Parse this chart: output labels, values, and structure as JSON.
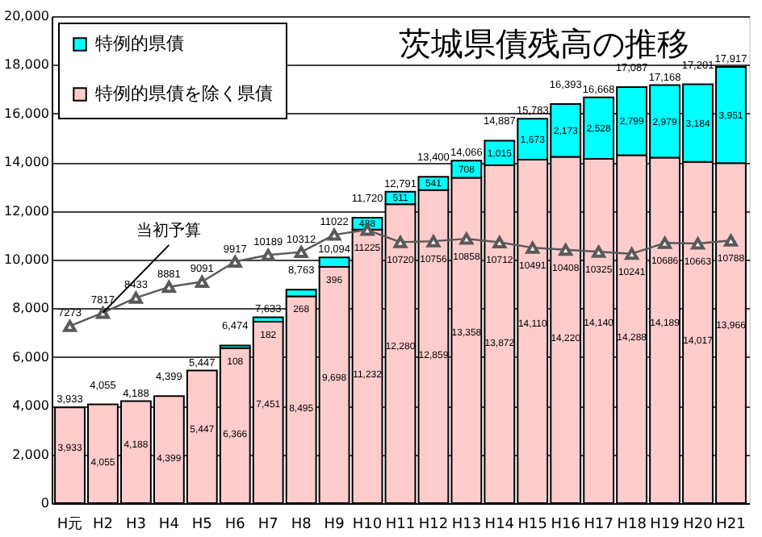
{
  "chart_data": {
    "type": "bar",
    "stacked": true,
    "title": "茨城県債残高の推移",
    "categories": [
      "H元",
      "H2",
      "H3",
      "H4",
      "H5",
      "H6",
      "H7",
      "H8",
      "H9",
      "H10",
      "H11",
      "H12",
      "H13",
      "H14",
      "H15",
      "H16",
      "H17",
      "H18",
      "H19",
      "H20",
      "H21"
    ],
    "series": [
      {
        "name": "特例的県債を除く県債",
        "color": "#ffcccc",
        "values": [
          3933,
          4055,
          4188,
          4399,
          5447,
          6366,
          7451,
          8495,
          9698,
          11232,
          12280,
          12859,
          13358,
          13872,
          14110,
          14220,
          14140,
          14288,
          14189,
          14017,
          13966
        ],
        "value_labels": [
          "3,933",
          "4,055",
          "4,188",
          "4,399",
          "5,447",
          "6,366",
          "7,451",
          "8,495",
          "9,698",
          "11,232",
          "12,280",
          "12,859",
          "13,358",
          "13,872",
          "14,110",
          "14,220",
          "14,140",
          "14,288",
          "14,189",
          "14,017",
          "13,966"
        ]
      },
      {
        "name": "特例的県債",
        "color": "#00ffff",
        "values": [
          null,
          null,
          null,
          null,
          null,
          108,
          182,
          268,
          396,
          488,
          511,
          541,
          708,
          1015,
          1673,
          2173,
          2528,
          2799,
          2979,
          3184,
          3951
        ],
        "value_labels": [
          null,
          null,
          null,
          null,
          null,
          "108",
          "182",
          "268",
          "396",
          "488",
          "511",
          "541",
          "708",
          "1,015",
          "1,673",
          "2,173",
          "2,528",
          "2,799",
          "2,979",
          "3,184",
          "3,951"
        ]
      },
      {
        "name": "当初予算",
        "type": "line",
        "color": "#595959",
        "values": [
          7273,
          7817,
          8433,
          8881,
          9091,
          9917,
          10189,
          10312,
          11022,
          11225,
          10720,
          10756,
          10858,
          10712,
          10491,
          10408,
          10325,
          10241,
          10686,
          10663,
          10788
        ],
        "value_labels": [
          "7273",
          "7817",
          "8433",
          "8881",
          "9091",
          "9917",
          "10189",
          "10312",
          "11022",
          "11225",
          "10720",
          "10756",
          "10858",
          "10712",
          "10491",
          "10408",
          "10325",
          "10241",
          "10686",
          "10663",
          "10788"
        ]
      }
    ],
    "totals": [
      "3,933",
      "4,055",
      "4,188",
      "4,399",
      "5,447",
      "6,474",
      "7,633",
      "8,763",
      "10,094",
      "11,720",
      "12,791",
      "13,400",
      "14,066",
      "14,887",
      "15,783",
      "16,393",
      "16,668",
      "17,087",
      "17,168",
      "17,201",
      "17,917"
    ],
    "ylim": [
      0,
      20000
    ],
    "yticks": [
      0,
      {
        "value": 2000,
        "label": "2,000"
      },
      {
        "value": 4000,
        "label": "4,000"
      },
      {
        "value": 6000,
        "label": "6,000"
      },
      {
        "value": 8000,
        "label": "8,000"
      },
      {
        "value": 10000,
        "label": "10,000"
      },
      {
        "value": 12000,
        "label": "12,000"
      },
      {
        "value": 14000,
        "label": "14,000"
      },
      {
        "value": 16000,
        "label": "16,000"
      },
      {
        "value": 18000,
        "label": "18,000"
      },
      {
        "value": 20000,
        "label": "20,000"
      }
    ],
    "grid": "y",
    "legend": "top left",
    "marker": "triangle"
  }
}
